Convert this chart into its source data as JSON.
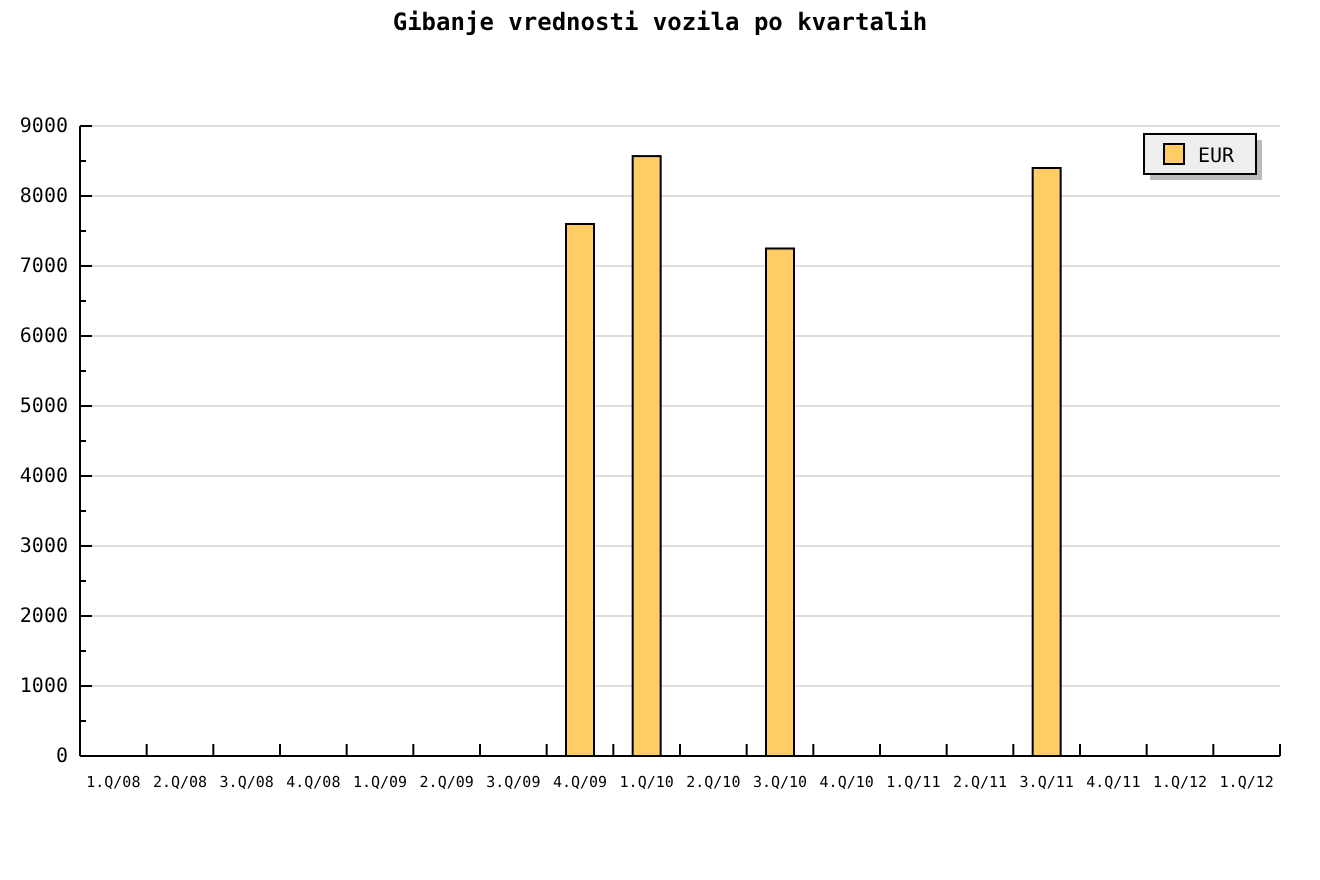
{
  "chart_data": {
    "type": "bar",
    "title": "Gibanje vrednosti vozila po kvartalih",
    "categories": [
      "1.Q/08",
      "2.Q/08",
      "3.Q/08",
      "4.Q/08",
      "1.Q/09",
      "2.Q/09",
      "3.Q/09",
      "4.Q/09",
      "1.Q/10",
      "2.Q/10",
      "3.Q/10",
      "4.Q/10",
      "1.Q/11",
      "2.Q/11",
      "3.Q/11",
      "4.Q/11",
      "1.Q/12",
      "1.Q/12"
    ],
    "series": [
      {
        "name": "EUR",
        "color": "#ffcc66",
        "values": [
          0,
          0,
          0,
          0,
          0,
          0,
          0,
          7600,
          8570,
          0,
          7250,
          0,
          0,
          0,
          8400,
          0,
          0,
          0
        ]
      }
    ],
    "ylim": [
      0,
      9000
    ],
    "yticks": [
      0,
      1000,
      2000,
      3000,
      4000,
      5000,
      6000,
      7000,
      8000,
      9000
    ],
    "grid": "y",
    "legend": "top right"
  }
}
